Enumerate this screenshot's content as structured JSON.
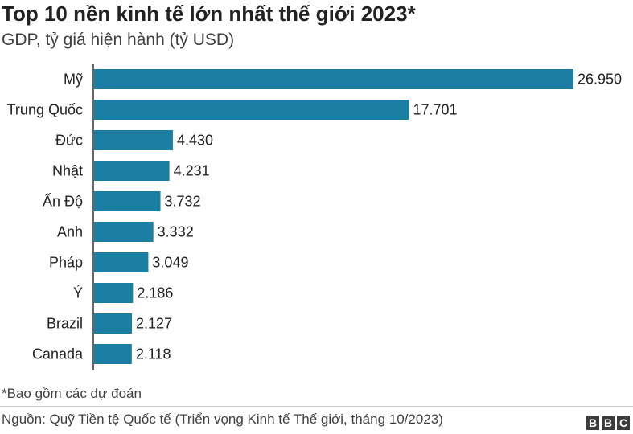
{
  "chart_data": {
    "type": "bar",
    "orientation": "horizontal",
    "title": "Top 10 nền kinh tế lớn nhất thế giới 2023*",
    "subtitle": "GDP, tỷ giá hiện hành (tỷ USD)",
    "categories": [
      "Mỹ",
      "Trung Quốc",
      "Đức",
      "Nhật",
      "Ấn Độ",
      "Anh",
      "Pháp",
      "Ý",
      "Brazil",
      "Canada"
    ],
    "values": [
      26950,
      17701,
      4430,
      4231,
      3732,
      3332,
      3049,
      2186,
      2127,
      2118
    ],
    "value_labels": [
      "26.950",
      "17.701",
      "4.430",
      "4.231",
      "3.732",
      "3.332",
      "3.049",
      "2.186",
      "2.127",
      "2.118"
    ],
    "xlim": [
      0,
      26950
    ],
    "grid": false,
    "bar_color": "#1a7fa3"
  },
  "footer": {
    "note": "*Bao gồm các dự đoán",
    "source": "Nguồn: Quỹ Tiền tệ Quốc tế (Triển vọng Kinh tế Thế giới, tháng 10/2023)",
    "logo": [
      "B",
      "B",
      "C"
    ]
  }
}
